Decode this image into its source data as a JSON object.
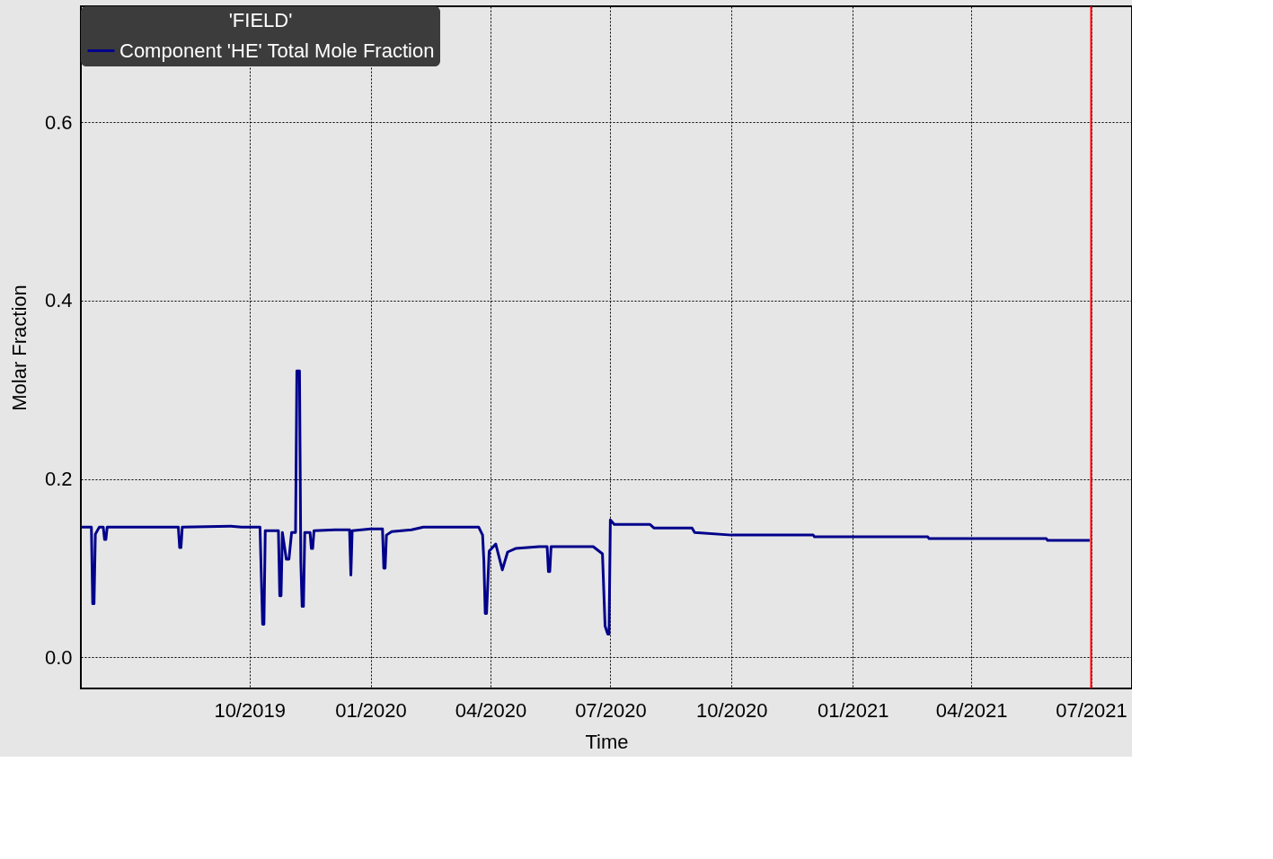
{
  "chart_data": {
    "type": "line",
    "xlabel": "Time",
    "ylabel": "Molar Fraction",
    "legend_title": "'FIELD'",
    "legend": "top left",
    "grid": true,
    "xlim": [
      "2019-05-26",
      "2021-08-01"
    ],
    "ylim": [
      -0.035,
      0.73
    ],
    "xticks": [
      {
        "value": "2019-10-01",
        "label": "10/2019"
      },
      {
        "value": "2020-01-01",
        "label": "01/2020"
      },
      {
        "value": "2020-04-01",
        "label": "04/2020"
      },
      {
        "value": "2020-07-01",
        "label": "07/2020"
      },
      {
        "value": "2020-10-01",
        "label": "10/2020"
      },
      {
        "value": "2021-01-01",
        "label": "01/2021"
      },
      {
        "value": "2021-04-01",
        "label": "04/2021"
      },
      {
        "value": "2021-07-01",
        "label": "07/2021"
      }
    ],
    "yticks": [
      {
        "value": 0,
        "label": "0.0"
      },
      {
        "value": 0.2,
        "label": "0.2"
      },
      {
        "value": 0.4,
        "label": "0.4"
      },
      {
        "value": 0.6,
        "label": "0.6"
      }
    ],
    "ref_lines": [
      {
        "axis": "x",
        "value": "2021-07-01",
        "color": "#ff0000"
      }
    ],
    "series": [
      {
        "name": "Component 'HE' Total Mole Fraction",
        "color": "#00008b",
        "x": [
          "2019-05-26",
          "2019-06-03",
          "2019-06-04",
          "2019-06-05",
          "2019-06-06",
          "2019-06-09",
          "2019-06-12",
          "2019-06-13",
          "2019-06-14",
          "2019-06-15",
          "2019-08-08",
          "2019-08-09",
          "2019-08-10",
          "2019-08-11",
          "2019-09-17",
          "2019-09-25",
          "2019-10-09",
          "2019-10-11",
          "2019-10-12",
          "2019-10-13",
          "2019-10-23",
          "2019-10-24",
          "2019-10-25",
          "2019-10-26",
          "2019-10-29",
          "2019-10-31",
          "2019-11-02",
          "2019-11-05",
          "2019-11-06",
          "2019-11-08",
          "2019-11-09",
          "2019-11-10",
          "2019-11-11",
          "2019-11-12",
          "2019-11-16",
          "2019-11-17",
          "2019-11-18",
          "2019-11-19",
          "2019-12-05",
          "2019-12-16",
          "2019-12-17",
          "2019-12-18",
          "2020-01-01",
          "2020-01-10",
          "2020-01-11",
          "2020-01-12",
          "2020-01-13",
          "2020-01-17",
          "2020-02-01",
          "2020-02-10",
          "2020-03-23",
          "2020-03-26",
          "2020-03-27",
          "2020-03-28",
          "2020-03-29",
          "2020-03-31",
          "2020-04-05",
          "2020-04-10",
          "2020-04-14",
          "2020-04-20",
          "2020-05-08",
          "2020-05-14",
          "2020-05-15",
          "2020-05-16",
          "2020-05-17",
          "2020-06-18",
          "2020-06-25",
          "2020-06-27",
          "2020-06-29",
          "2020-06-30",
          "2020-07-01",
          "2020-07-04",
          "2020-07-31",
          "2020-08-03",
          "2020-09-01",
          "2020-09-03",
          "2020-10-01",
          "2020-12-02",
          "2020-12-03",
          "2021-02-27",
          "2021-02-28",
          "2021-05-28",
          "2021-05-29",
          "2021-06-30"
        ],
        "values": [
          0.146,
          0.146,
          0.06,
          0.06,
          0.138,
          0.146,
          0.146,
          0.132,
          0.132,
          0.146,
          0.146,
          0.123,
          0.123,
          0.146,
          0.147,
          0.146,
          0.146,
          0.037,
          0.037,
          0.142,
          0.142,
          0.069,
          0.069,
          0.14,
          0.11,
          0.11,
          0.14,
          0.14,
          0.321,
          0.321,
          0.107,
          0.057,
          0.057,
          0.14,
          0.14,
          0.122,
          0.122,
          0.142,
          0.143,
          0.143,
          0.092,
          0.142,
          0.144,
          0.144,
          0.1,
          0.1,
          0.137,
          0.141,
          0.143,
          0.146,
          0.146,
          0.137,
          0.107,
          0.049,
          0.049,
          0.119,
          0.127,
          0.098,
          0.118,
          0.122,
          0.124,
          0.124,
          0.096,
          0.096,
          0.124,
          0.124,
          0.116,
          0.035,
          0.026,
          0.026,
          0.154,
          0.149,
          0.149,
          0.145,
          0.145,
          0.14,
          0.137,
          0.137,
          0.135,
          0.135,
          0.133,
          0.133,
          0.131,
          0.131
        ]
      }
    ]
  }
}
